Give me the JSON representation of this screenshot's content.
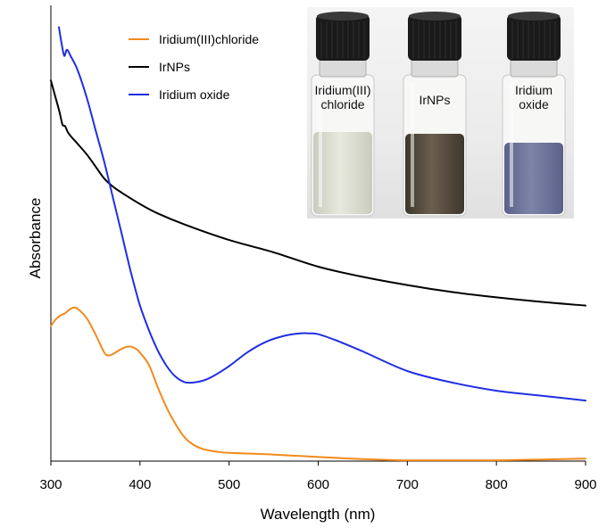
{
  "chart_data": {
    "type": "line",
    "xlabel": "Wavelength (nm)",
    "ylabel": "Absorbance",
    "xlim": [
      300,
      900
    ],
    "ylim": [
      0,
      1.0
    ],
    "xticks": [
      "300",
      "400",
      "500",
      "600",
      "700",
      "800",
      "900"
    ],
    "yticks_shown": false,
    "grid": false,
    "legend_position": "top-center",
    "series": [
      {
        "name": "Iridium(III)chloride",
        "color": "#F28A1E",
        "x": [
          300,
          305,
          310,
          315,
          318,
          322,
          326,
          330,
          340,
          350,
          360,
          365,
          370,
          380,
          388,
          395,
          400,
          410,
          420,
          430,
          440,
          450,
          460,
          470,
          480,
          490,
          500,
          550,
          600,
          650,
          700,
          750,
          800,
          850,
          900
        ],
        "y": [
          0.33,
          0.345,
          0.355,
          0.36,
          0.365,
          0.372,
          0.375,
          0.372,
          0.35,
          0.31,
          0.265,
          0.258,
          0.262,
          0.275,
          0.28,
          0.275,
          0.265,
          0.235,
          0.18,
          0.13,
          0.09,
          0.058,
          0.04,
          0.03,
          0.025,
          0.022,
          0.02,
          0.016,
          0.01,
          0.005,
          0.002,
          0.002,
          0.002,
          0.004,
          0.006
        ]
      },
      {
        "name": "IrNPs",
        "color": "#000000",
        "x": [
          300,
          305,
          310,
          313,
          316,
          320,
          330,
          340,
          350,
          360,
          370,
          380,
          400,
          420,
          450,
          500,
          550,
          600,
          650,
          700,
          750,
          800,
          850,
          900
        ],
        "y": [
          0.93,
          0.89,
          0.85,
          0.822,
          0.818,
          0.8,
          0.775,
          0.75,
          0.72,
          0.69,
          0.67,
          0.655,
          0.628,
          0.605,
          0.578,
          0.54,
          0.51,
          0.475,
          0.45,
          0.43,
          0.413,
          0.4,
          0.389,
          0.38
        ]
      },
      {
        "name": "Iridium oxide",
        "color": "#1F2FE0",
        "x": [
          309,
          312,
          315,
          318,
          322,
          330,
          340,
          350,
          360,
          370,
          380,
          390,
          400,
          410,
          420,
          430,
          440,
          450,
          460,
          470,
          480,
          500,
          520,
          540,
          560,
          580,
          590,
          600,
          620,
          650,
          700,
          750,
          800,
          850,
          900
        ],
        "y": [
          1.06,
          1.02,
          0.99,
          1.005,
          0.99,
          0.955,
          0.89,
          0.81,
          0.73,
          0.64,
          0.55,
          0.46,
          0.38,
          0.32,
          0.27,
          0.232,
          0.206,
          0.193,
          0.192,
          0.196,
          0.205,
          0.232,
          0.265,
          0.29,
          0.305,
          0.312,
          0.312,
          0.31,
          0.295,
          0.268,
          0.22,
          0.192,
          0.172,
          0.16,
          0.148
        ]
      }
    ]
  },
  "photo": {
    "vials": [
      {
        "label_lines": [
          "Iridium(III)",
          "chloride"
        ],
        "liquid_color": "#E7E9DE",
        "liquid_color_dark": "#C9CCBD"
      },
      {
        "label_lines": [
          "IrNPs"
        ],
        "liquid_color": "#6A5E4E",
        "liquid_color_dark": "#3E372D"
      },
      {
        "label_lines": [
          "Iridium",
          "oxide"
        ],
        "liquid_color": "#7E84A8",
        "liquid_color_dark": "#5B6189"
      }
    ]
  }
}
